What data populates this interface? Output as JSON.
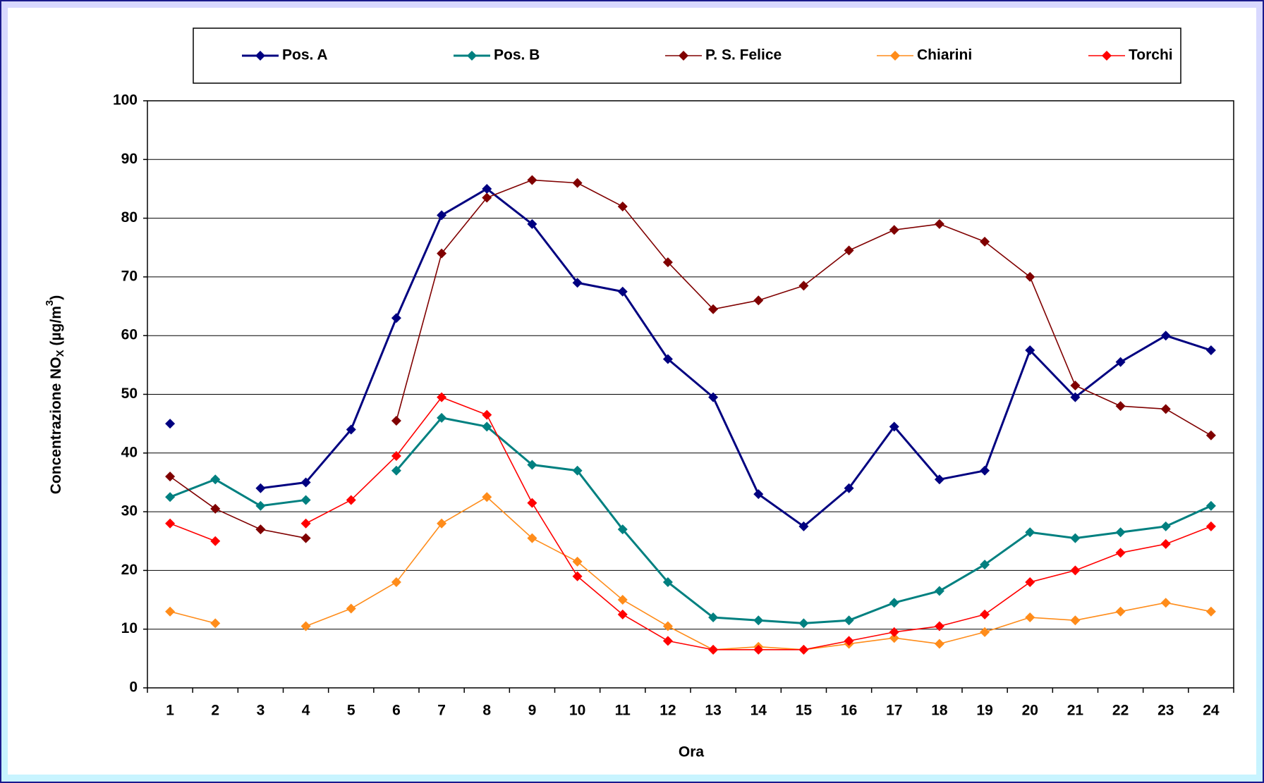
{
  "chart_data": {
    "type": "line",
    "x_label": "Ora",
    "y_label": {
      "text": "Concentrazione NO",
      "sub": "X",
      "mid": " (µg/m",
      "sup": "3",
      "end": ")"
    },
    "categories": [
      1,
      2,
      3,
      4,
      5,
      6,
      7,
      8,
      9,
      10,
      11,
      12,
      13,
      14,
      15,
      16,
      17,
      18,
      19,
      20,
      21,
      22,
      23,
      24
    ],
    "ylim": [
      0,
      100
    ],
    "yticks": [
      0,
      10,
      20,
      30,
      40,
      50,
      60,
      70,
      80,
      90,
      100
    ],
    "grid": true,
    "series": [
      {
        "name": "Pos. A",
        "color": "#000080",
        "width": 3,
        "values": [
          45,
          null,
          34,
          35,
          44,
          63,
          80.5,
          85,
          79,
          69,
          67.5,
          56,
          49.5,
          33,
          27.5,
          34,
          44.5,
          35.5,
          37,
          57.5,
          49.5,
          55.5,
          60,
          57.5
        ]
      },
      {
        "name": "Pos. B",
        "color": "#008080",
        "width": 3,
        "values": [
          32.5,
          35.5,
          31,
          32,
          null,
          37,
          46,
          44.5,
          38,
          37,
          27,
          18,
          12,
          11.5,
          11,
          11.5,
          14.5,
          16.5,
          21,
          26.5,
          25.5,
          26.5,
          27.5,
          31
        ]
      },
      {
        "name": "P. S. Felice",
        "color": "#800000",
        "width": 1.6,
        "values": [
          36,
          30.5,
          27,
          25.5,
          null,
          45.5,
          74,
          83.5,
          86.5,
          86,
          82,
          72.5,
          64.5,
          66,
          68.5,
          74.5,
          78,
          79,
          76,
          70,
          51.5,
          48,
          47.5,
          43
        ]
      },
      {
        "name": "Chiarini",
        "color": "#ff8c1a",
        "width": 1.6,
        "values": [
          13,
          11,
          null,
          10.5,
          13.5,
          18,
          28,
          32.5,
          25.5,
          21.5,
          15,
          10.5,
          6.5,
          7,
          6.5,
          7.5,
          8.5,
          7.5,
          9.5,
          12,
          11.5,
          13,
          14.5,
          13
        ]
      },
      {
        "name": "Torchi",
        "color": "#ff0000",
        "width": 1.6,
        "values": [
          28,
          25,
          null,
          28,
          32,
          39.5,
          49.5,
          46.5,
          31.5,
          19,
          12.5,
          8,
          6.5,
          6.5,
          6.5,
          8,
          9.5,
          10.5,
          12.5,
          18,
          20,
          23,
          24.5,
          27.5
        ]
      }
    ]
  }
}
